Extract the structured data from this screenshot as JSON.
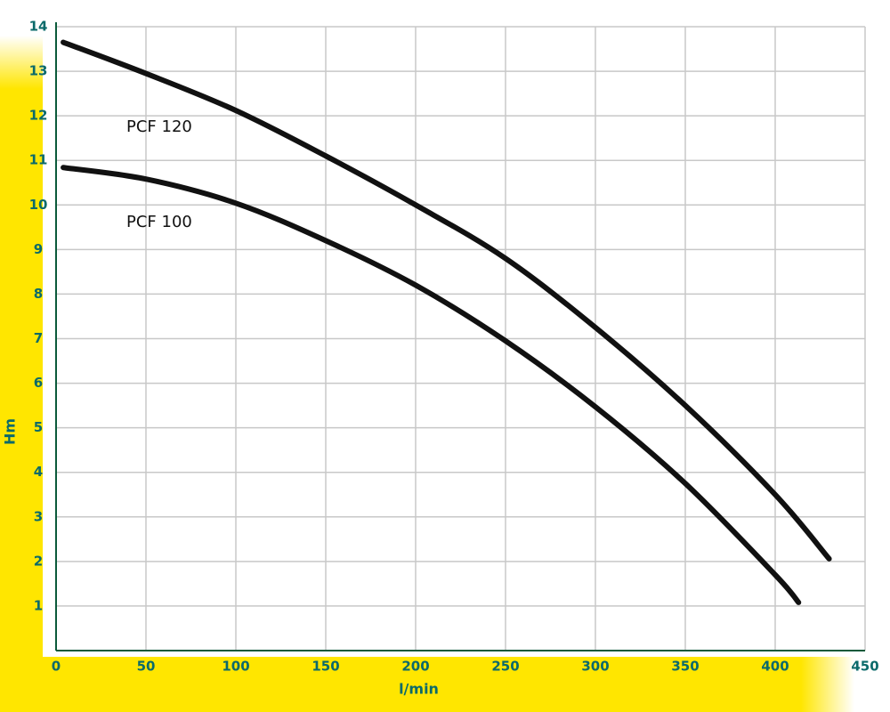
{
  "chart_data": {
    "type": "line",
    "x_label": "l/min",
    "y_label": "Hm",
    "xlim": [
      0,
      450
    ],
    "xticks": [
      0,
      50,
      100,
      150,
      200,
      250,
      300,
      350,
      400,
      450
    ],
    "ylim": [
      0,
      14
    ],
    "yticks": [
      1,
      2,
      3,
      4,
      5,
      6,
      7,
      8,
      9,
      10,
      11,
      12,
      13,
      14
    ],
    "grid": true,
    "series": [
      {
        "name": "PCF 120",
        "color": "#111111",
        "x": [
          4,
          50,
          100,
          150,
          200,
          250,
          300,
          350,
          400,
          430
        ],
        "values": [
          13.65,
          12.95,
          12.12,
          11.1,
          10.0,
          8.8,
          7.25,
          5.5,
          3.5,
          2.06
        ]
      },
      {
        "name": "PCF 100",
        "color": "#111111",
        "x": [
          4,
          50,
          100,
          150,
          200,
          250,
          300,
          350,
          400,
          413
        ],
        "values": [
          10.84,
          10.58,
          10.04,
          9.2,
          8.2,
          6.95,
          5.47,
          3.75,
          1.7,
          1.08
        ]
      }
    ]
  }
}
